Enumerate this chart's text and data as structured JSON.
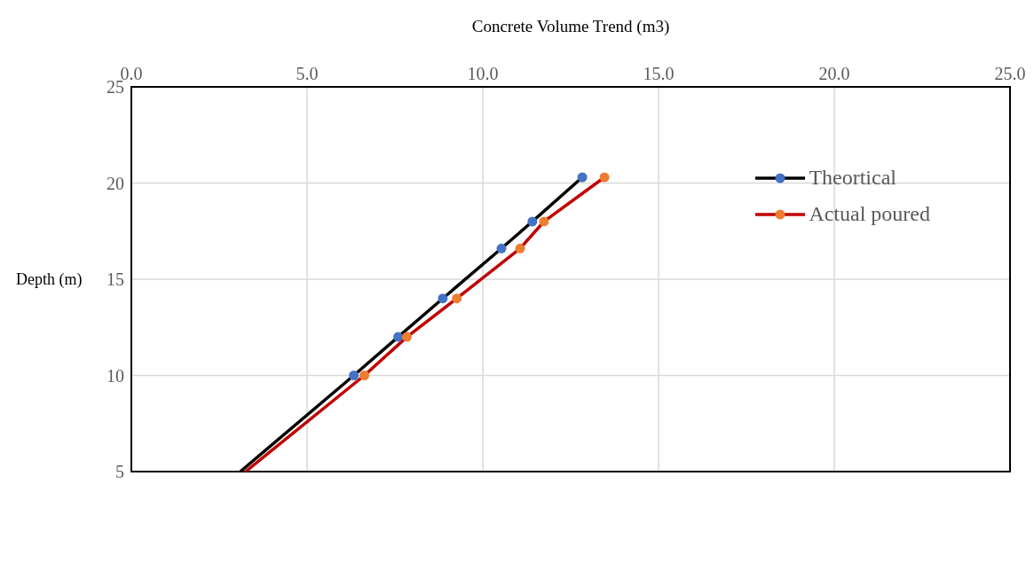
{
  "chart_data": {
    "type": "line",
    "xlabel": "Concrete Volume Trend (m3)",
    "ylabel": "Depth (m)",
    "xlim": [
      0,
      25
    ],
    "xticks": [
      {
        "value": 0,
        "label": "0.0"
      },
      {
        "value": 5,
        "label": "5.0"
      },
      {
        "value": 10,
        "label": "10.0"
      },
      {
        "value": 15,
        "label": "15.0"
      },
      {
        "value": 20,
        "label": "20.0"
      },
      {
        "value": 25,
        "label": "25.0"
      }
    ],
    "ylim": [
      5,
      25
    ],
    "yticks": [
      5,
      10,
      15,
      20,
      25
    ],
    "grid": true,
    "legend": "top right",
    "marker": "circle",
    "line_style": "solid",
    "series": [
      {
        "name": "Theortical",
        "color": "#000000",
        "colors": [
          "#4472c4",
          "#4472c4",
          "#4472c4",
          "#4472c4",
          "#4472c4",
          "#4472c4"
        ],
        "x": [
          6.33,
          7.59,
          8.86,
          10.53,
          11.41,
          12.83
        ],
        "values": [
          10,
          12,
          14,
          16.6,
          18,
          20.3
        ]
      },
      {
        "name": "Actual poured",
        "color": "#c00000",
        "colors": [
          "#ed7d31",
          "#ed7d31",
          "#ed7d31",
          "#ed7d31",
          "#ed7d31",
          "#ed7d31"
        ],
        "x": [
          6.63,
          7.84,
          9.26,
          11.06,
          11.74,
          13.46
        ],
        "values": [
          10,
          12,
          14,
          16.6,
          18,
          20.3
        ]
      },
      {
        "color": "#000000",
        "marker": "none",
        "x": [
          3.1,
          6.33
        ],
        "values": [
          5,
          10
        ]
      },
      {
        "color": "#c00000",
        "marker": "none",
        "x": [
          3.25,
          6.63
        ],
        "values": [
          5,
          10
        ]
      }
    ]
  }
}
